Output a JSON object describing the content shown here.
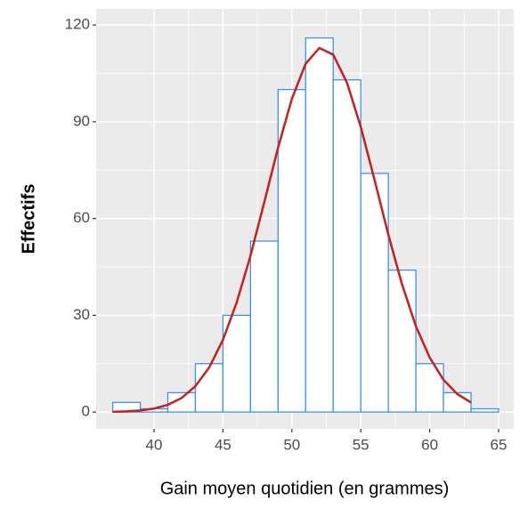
{
  "chart_data": {
    "type": "histogram",
    "x_label": "Gain moyen quotidien (en grammes)",
    "y_label": "Effectifs",
    "bins": [
      37,
      39,
      41,
      43,
      45,
      47,
      49,
      51,
      53,
      55,
      57,
      59,
      61,
      63,
      65
    ],
    "values": [
      3,
      1,
      6,
      15,
      30,
      53,
      100,
      116,
      103,
      74,
      44,
      15,
      6,
      1
    ],
    "color": "#3d94e6",
    "curve": {
      "color": "#c81f1f",
      "x": [
        37,
        38,
        39,
        40,
        41,
        42,
        43,
        44,
        45,
        46,
        47,
        48,
        49,
        50,
        51,
        52,
        53,
        54,
        55,
        56,
        57,
        58,
        59,
        60,
        61,
        62,
        63
      ],
      "values": [
        0.08,
        0.21,
        0.49,
        1.08,
        2.24,
        4.37,
        8.02,
        13.8,
        22.4,
        34.0,
        48.5,
        65.1,
        82.0,
        97.1,
        108.0,
        112.9,
        110.8,
        102.1,
        88.4,
        72.0,
        55.0,
        39.5,
        26.6,
        16.9,
        10.0,
        5.6,
        2.95
      ]
    },
    "xlim": [
      35.8,
      66.1
    ],
    "xticks": [
      40,
      45,
      50,
      55,
      60,
      65
    ],
    "ylim": [
      -5.2,
      125
    ],
    "yticks": [
      0,
      30,
      60,
      90,
      120
    ],
    "grid": true
  }
}
